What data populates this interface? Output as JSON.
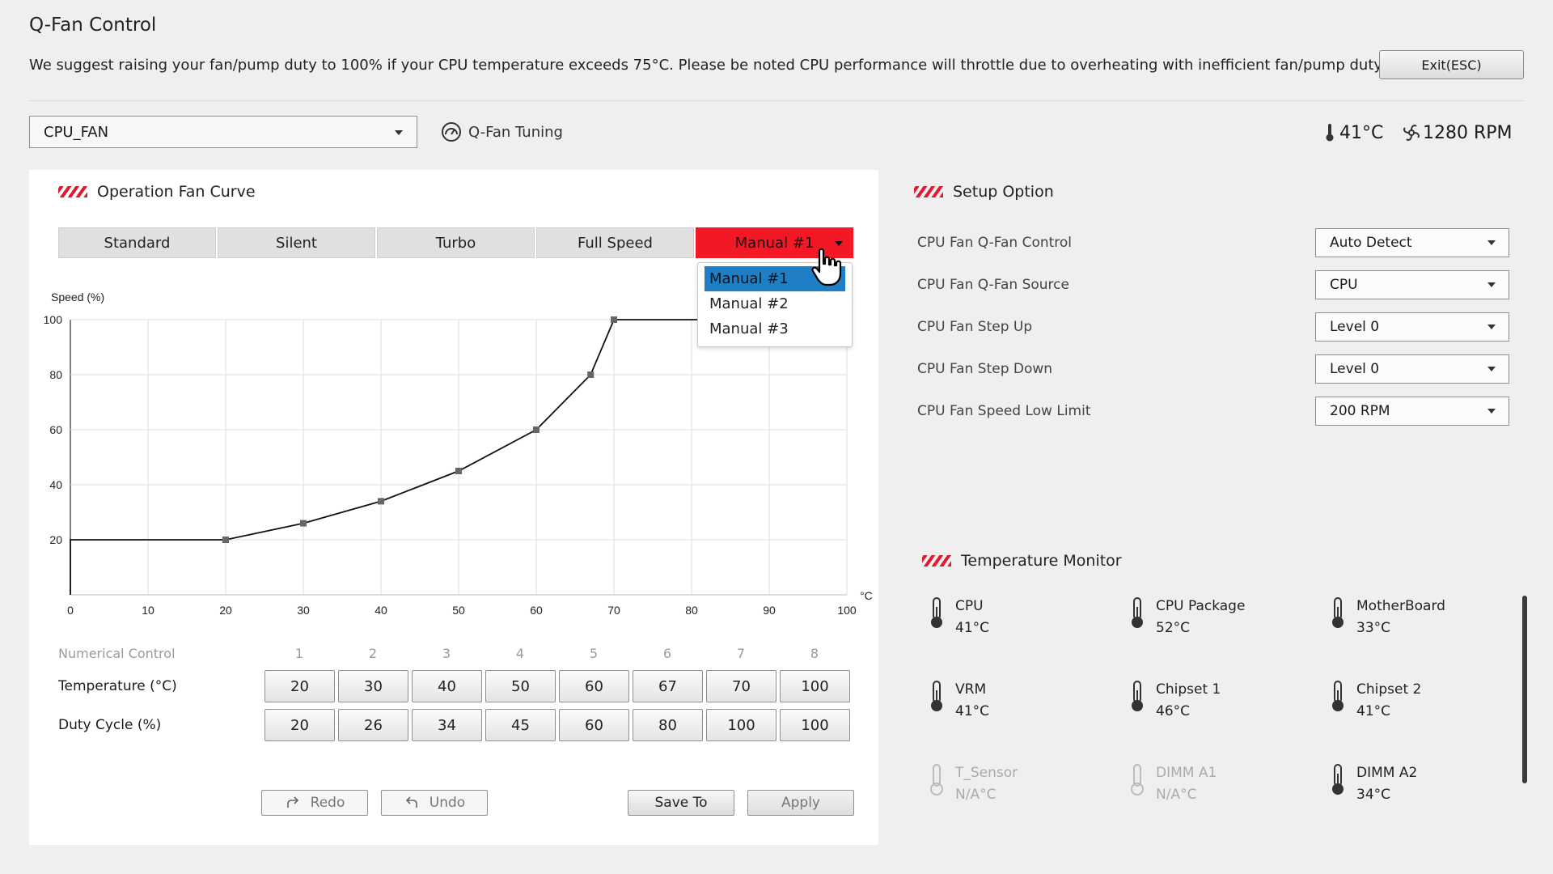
{
  "window": {
    "title": "Q-Fan Control",
    "notice": "We suggest raising your fan/pump duty to 100% if your CPU temperature exceeds 75°C. Please be noted CPU performance will throttle due to overheating with inefficient fan/pump duty.",
    "exit_label": "Exit(ESC)"
  },
  "toolbar": {
    "fan_select": "CPU_FAN",
    "qfan_tuning_label": "Q-Fan Tuning",
    "temperature": "41°C",
    "rpm": "1280 RPM"
  },
  "fan_curve": {
    "title": "Operation Fan Curve",
    "tabs": [
      "Standard",
      "Silent",
      "Turbo",
      "Full Speed",
      "Manual #1"
    ],
    "active_tab": "Manual #1",
    "dropdown_items": [
      "Manual #1",
      "Manual #2",
      "Manual #3"
    ],
    "selected_dropdown": "Manual #1"
  },
  "chart_data": {
    "type": "line",
    "ylabel": "Speed (%)",
    "xlabel": "°C",
    "xlim": [
      0,
      100
    ],
    "ylim": [
      0,
      100
    ],
    "xticks": [
      "0",
      "10",
      "20",
      "30",
      "40",
      "50",
      "60",
      "70",
      "80",
      "90",
      "100"
    ],
    "yticks": [
      "20",
      "40",
      "60",
      "80",
      "100"
    ],
    "grid": true,
    "series": [
      {
        "x": [
          20,
          30,
          40,
          50,
          60,
          67,
          70,
          100
        ],
        "y": [
          20,
          26,
          34,
          45,
          60,
          80,
          100,
          100
        ]
      }
    ]
  },
  "numerical_control": {
    "title": "Numerical Control",
    "indices": [
      "1",
      "2",
      "3",
      "4",
      "5",
      "6",
      "7",
      "8"
    ],
    "temperature_label": "Temperature (°C)",
    "duty_label": "Duty Cycle (%)",
    "temperatures": [
      "20",
      "30",
      "40",
      "50",
      "60",
      "67",
      "70",
      "100"
    ],
    "duties": [
      "20",
      "26",
      "34",
      "45",
      "60",
      "80",
      "100",
      "100"
    ]
  },
  "actions": {
    "redo": "Redo",
    "undo": "Undo",
    "save_to": "Save To",
    "apply": "Apply"
  },
  "setup": {
    "title": "Setup Option",
    "options": [
      {
        "label": "CPU Fan Q-Fan Control",
        "value": "Auto Detect"
      },
      {
        "label": "CPU Fan Q-Fan Source",
        "value": "CPU"
      },
      {
        "label": "CPU Fan Step Up",
        "value": "Level 0"
      },
      {
        "label": "CPU Fan Step Down",
        "value": "Level 0"
      },
      {
        "label": "CPU Fan Speed Low Limit",
        "value": "200 RPM"
      }
    ]
  },
  "temperature_monitor": {
    "title": "Temperature Monitor",
    "sensors": [
      {
        "name": "CPU",
        "value": "41°C"
      },
      {
        "name": "CPU Package",
        "value": "52°C"
      },
      {
        "name": "MotherBoard",
        "value": "33°C"
      },
      {
        "name": "VRM",
        "value": "41°C"
      },
      {
        "name": "Chipset 1",
        "value": "46°C"
      },
      {
        "name": "Chipset 2",
        "value": "41°C"
      },
      {
        "name": "T_Sensor",
        "value": "N/A°C"
      },
      {
        "name": "DIMM A1",
        "value": "N/A°C"
      },
      {
        "name": "DIMM A2",
        "value": "34°C"
      }
    ]
  },
  "colors": {
    "accent": "#f21826",
    "dropdown_selected": "#1e7fc6",
    "panel": "#ffffff",
    "background": "#efefef"
  }
}
